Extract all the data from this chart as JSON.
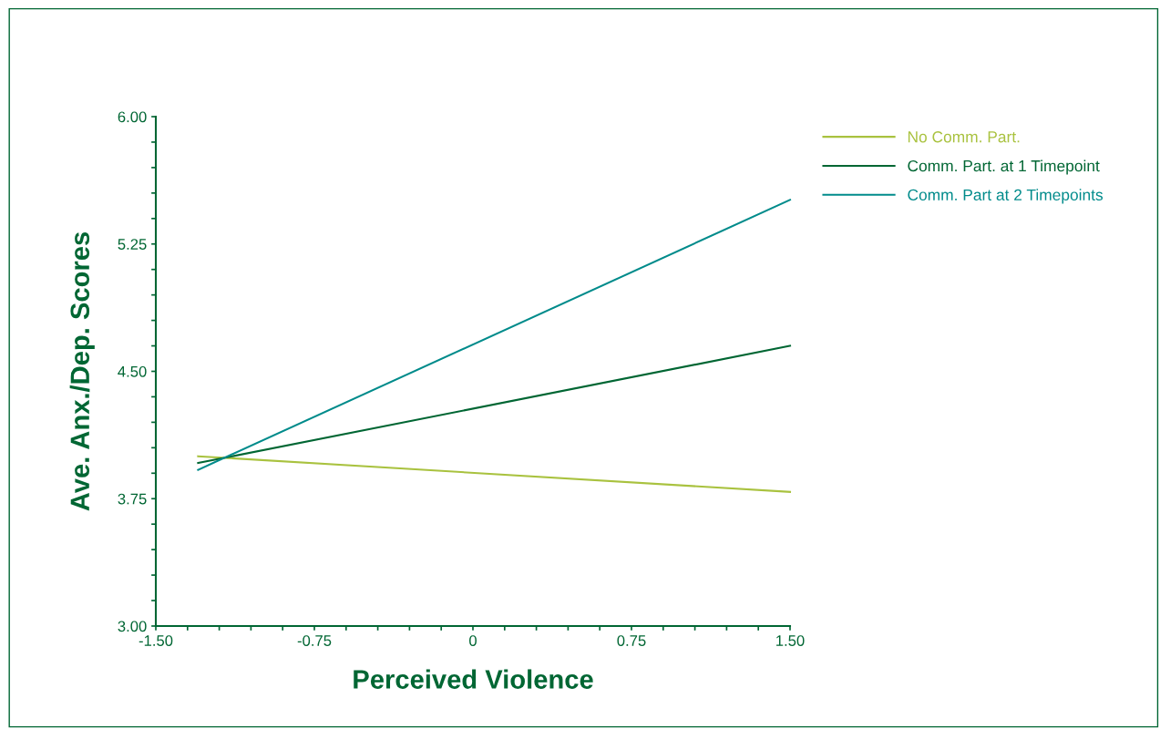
{
  "chart_data": {
    "type": "line",
    "xlabel": "Perceived Violence",
    "ylabel": "Ave. Anx./Dep. Scores",
    "x": [
      -1.3,
      1.5
    ],
    "series": [
      {
        "name": "No Comm. Part.",
        "color": "#a9c23f",
        "values": [
          4.0,
          3.79
        ]
      },
      {
        "name": "Comm. Part. at 1 Timepoint",
        "color": "#006633",
        "values": [
          3.96,
          4.65
        ]
      },
      {
        "name": "Comm. Part at 2 Timepoints",
        "color": "#008b8b",
        "values": [
          3.92,
          5.51
        ]
      }
    ],
    "xlim": [
      -1.5,
      1.5
    ],
    "xticks": [
      {
        "value": -1.5,
        "label": "-1.50"
      },
      {
        "value": -1.35,
        "label": null
      },
      {
        "value": -1.2,
        "label": null
      },
      {
        "value": -1.05,
        "label": null
      },
      {
        "value": -0.9,
        "label": null
      },
      {
        "value": -0.75,
        "label": "-0.75"
      },
      {
        "value": -0.6,
        "label": null
      },
      {
        "value": -0.45,
        "label": null
      },
      {
        "value": -0.3,
        "label": null
      },
      {
        "value": -0.15,
        "label": null
      },
      {
        "value": 0,
        "label": "0"
      },
      {
        "value": 0.15,
        "label": null
      },
      {
        "value": 0.3,
        "label": null
      },
      {
        "value": 0.45,
        "label": null
      },
      {
        "value": 0.6,
        "label": null
      },
      {
        "value": 0.75,
        "label": "0.75"
      },
      {
        "value": 0.9,
        "label": null
      },
      {
        "value": 1.05,
        "label": null
      },
      {
        "value": 1.2,
        "label": null
      },
      {
        "value": 1.35,
        "label": null
      },
      {
        "value": 1.5,
        "label": "1.50"
      }
    ],
    "ylim": [
      3.0,
      6.0
    ],
    "yticks": [
      {
        "value": 3.0,
        "label": "3.00"
      },
      {
        "value": 3.15,
        "label": null
      },
      {
        "value": 3.3,
        "label": null
      },
      {
        "value": 3.45,
        "label": null
      },
      {
        "value": 3.6,
        "label": null
      },
      {
        "value": 3.75,
        "label": "3.75"
      },
      {
        "value": 3.9,
        "label": null
      },
      {
        "value": 4.05,
        "label": null
      },
      {
        "value": 4.2,
        "label": null
      },
      {
        "value": 4.35,
        "label": null
      },
      {
        "value": 4.5,
        "label": "4.50"
      },
      {
        "value": 4.65,
        "label": null
      },
      {
        "value": 4.8,
        "label": null
      },
      {
        "value": 4.95,
        "label": null
      },
      {
        "value": 5.1,
        "label": null
      },
      {
        "value": 5.25,
        "label": "5.25"
      },
      {
        "value": 5.4,
        "label": null
      },
      {
        "value": 5.55,
        "label": null
      },
      {
        "value": 5.7,
        "label": null
      },
      {
        "value": 5.85,
        "label": null
      },
      {
        "value": 6.0,
        "label": "6.00"
      }
    ],
    "grid": false,
    "legend": "top right",
    "marker": "none",
    "line_style": "solid"
  }
}
